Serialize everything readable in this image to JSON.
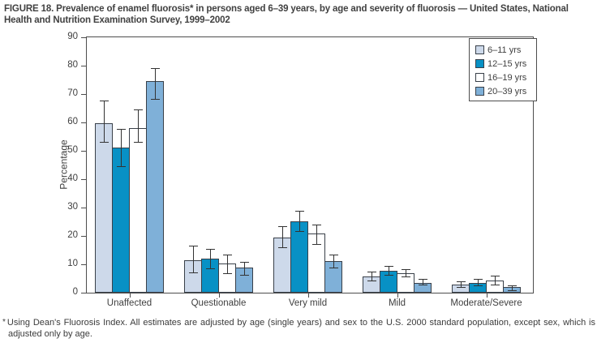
{
  "figure": {
    "title": "FIGURE 18. Prevalence of enamel fluorosis* in persons aged 6–39 years, by age and severity of fluorosis — United States, National Health and Nutrition Examination Survey, 1999–2002",
    "footnote_marker": "*",
    "footnote": "Using Dean's Fluorosis Index. All estimates are adjusted by age (single years) and sex to the U.S. 2000 standard population, except sex, which is adjusted only by age."
  },
  "chart_data": {
    "type": "bar",
    "categories": [
      "Unaffected",
      "Questionable",
      "Very mild",
      "Mild",
      "Moderate/Severe"
    ],
    "series": [
      {
        "name": "6–11 yrs",
        "color": "#cdd9ea",
        "values": [
          59.8,
          11.5,
          19.5,
          5.8,
          2.8
        ],
        "ci_low": [
          52.8,
          6.8,
          15.8,
          4.0,
          1.7
        ],
        "ci_high": [
          67.8,
          16.5,
          23.5,
          7.5,
          3.9
        ]
      },
      {
        "name": "12–15 yrs",
        "color": "#0891c5",
        "values": [
          51.2,
          12.0,
          25.3,
          7.8,
          3.5
        ],
        "ci_low": [
          44.2,
          8.3,
          21.5,
          6.0,
          2.2
        ],
        "ci_high": [
          57.8,
          15.3,
          29.0,
          9.3,
          5.0
        ]
      },
      {
        "name": "16–19 yrs",
        "color": "#ffffff",
        "values": [
          58.0,
          10.3,
          20.8,
          6.8,
          4.3
        ],
        "ci_low": [
          52.8,
          6.5,
          17.0,
          5.3,
          2.5
        ],
        "ci_high": [
          64.7,
          13.4,
          24.0,
          8.2,
          6.1
        ]
      },
      {
        "name": "20–39 yrs",
        "color": "#7fb0d8",
        "values": [
          74.6,
          8.8,
          11.2,
          3.4,
          2.0
        ],
        "ci_low": [
          68.0,
          6.1,
          8.5,
          2.5,
          0.6
        ],
        "ci_high": [
          79.2,
          11.0,
          13.5,
          5.0,
          2.6
        ]
      }
    ],
    "xlabel": "",
    "ylabel": "Percentage",
    "ylim": [
      0,
      90
    ],
    "ytick_step": 10,
    "grid": false,
    "error_bars": true,
    "legend_position": "top-right",
    "bar_border_color": "#394049",
    "axis_color": "#4d4d4d",
    "error_bar_color": "#333333"
  }
}
